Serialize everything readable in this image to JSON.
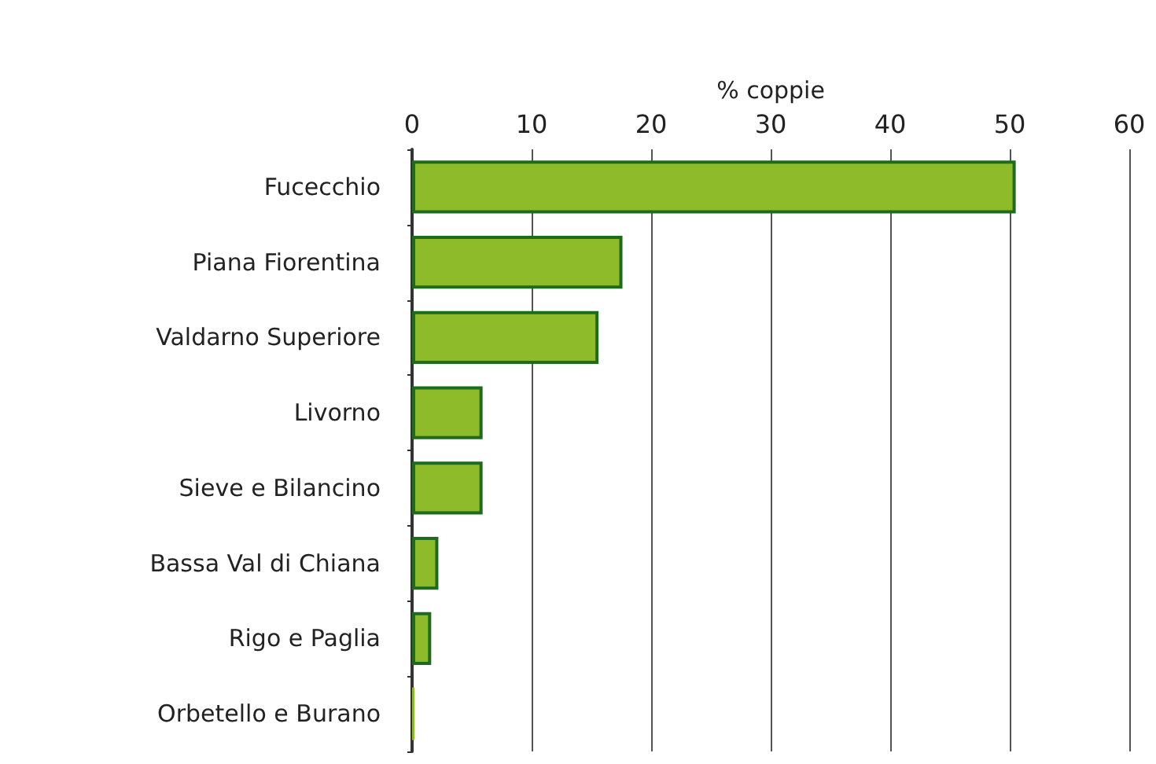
{
  "chart_data": {
    "type": "bar",
    "orientation": "horizontal",
    "xlabel": "% coppie",
    "categories": [
      "Fucecchio",
      "Piana Fiorentina",
      "Valdarno Superiore",
      "Livorno",
      "Sieve e Bilancino",
      "Bassa Val di Chiana",
      "Rigo e Paglia",
      "Orbetello e Burano"
    ],
    "values": [
      50.5,
      17.6,
      15.6,
      5.9,
      5.9,
      2.2,
      1.6,
      0.2
    ],
    "color": "#8dbb2a",
    "xlim": [
      0,
      60
    ],
    "xticks": [
      0,
      10,
      20,
      30,
      40,
      50,
      60
    ],
    "grid": "x"
  }
}
